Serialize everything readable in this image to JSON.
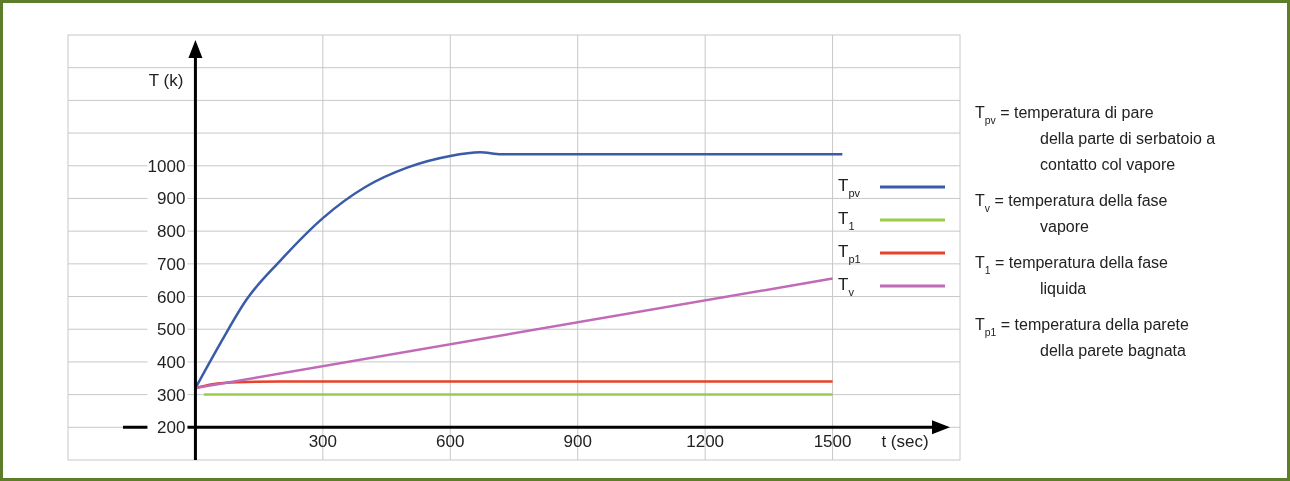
{
  "chart_data": {
    "type": "line",
    "xlabel": "t (sec)",
    "ylabel": "T (k)",
    "xlim": [
      -300,
      1800
    ],
    "ylim": [
      100,
      1400
    ],
    "xticks": [
      300,
      600,
      900,
      1200,
      1500
    ],
    "yticks": [
      200,
      300,
      400,
      500,
      600,
      700,
      800,
      900,
      1000,
      {
        "value": 1100,
        "label": null
      },
      {
        "value": 1200,
        "label": null
      },
      {
        "value": 1300,
        "label": null
      }
    ],
    "grid": true,
    "legend": "right",
    "marker": "none",
    "line_style": "solid",
    "series": [
      {
        "name": "T$_{pv}$",
        "color": "#3a5ba8",
        "x": [
          0,
          60,
          120,
          200,
          300,
          400,
          500,
          600,
          670,
          720,
          1000,
          1300,
          1523
        ],
        "values": [
          320,
          460,
          590,
          710,
          840,
          935,
          995,
          1030,
          1041,
          1035,
          1035,
          1035,
          1035
        ]
      },
      {
        "name": "T$_{1}$",
        "color": "#9acd4a",
        "x": [
          20,
          1500
        ],
        "values": [
          300,
          300
        ]
      },
      {
        "name": "T$_{p1}$",
        "color": "#e8402a",
        "x": [
          0,
          40,
          100,
          200,
          1500
        ],
        "values": [
          320,
          332,
          338,
          340,
          340
        ]
      },
      {
        "name": "T$_{v}$",
        "color": "#c06ab8",
        "x": [
          0,
          1500
        ],
        "values": [
          320,
          655
        ]
      }
    ],
    "annotations": [
      "T$_{pv}$ = temperatura di pare della parte di serbatoio a contatto col vapore",
      "T$_{v}$ = temperatura della fase vapore",
      "T$_{1}$ = temperatura della fase liquida",
      "T$_{p1}$ = temperatura della parete della parete bagnata"
    ]
  }
}
